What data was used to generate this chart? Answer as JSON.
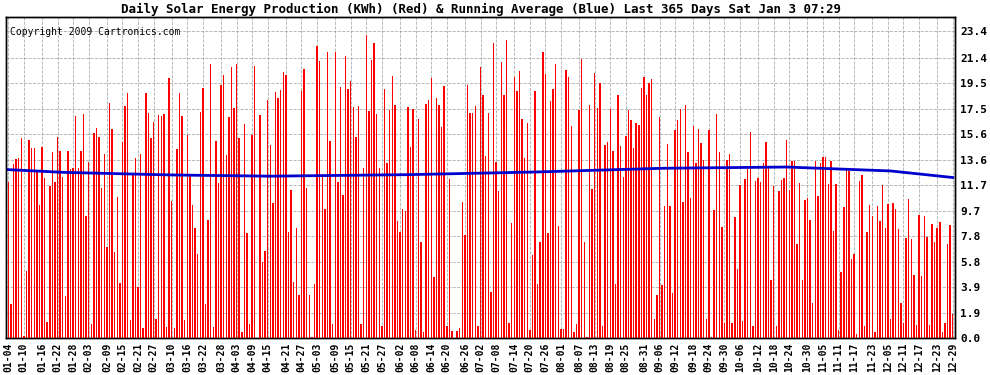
{
  "title": "Daily Solar Energy Production (KWh) (Red) & Running Average (Blue) Last 365 Days Sat Jan 3 07:29",
  "copyright": "Copyright 2009 Cartronics.com",
  "bar_color": "#ff0000",
  "avg_line_color": "#0000cc",
  "background_color": "#ffffff",
  "plot_bg_color": "#ffffff",
  "grid_color": "#999999",
  "yticks": [
    0.0,
    1.9,
    3.9,
    5.8,
    7.8,
    9.7,
    11.7,
    13.6,
    15.6,
    17.5,
    19.5,
    21.4,
    23.4
  ],
  "ylim": [
    0.0,
    24.5
  ],
  "x_labels": [
    "01-04",
    "01-10",
    "01-16",
    "01-22",
    "01-28",
    "02-03",
    "02-09",
    "02-15",
    "02-21",
    "02-27",
    "03-10",
    "03-16",
    "03-22",
    "03-28",
    "04-03",
    "04-09",
    "04-15",
    "04-21",
    "04-27",
    "05-03",
    "05-09",
    "05-15",
    "05-21",
    "05-27",
    "06-02",
    "06-08",
    "06-14",
    "06-20",
    "06-26",
    "07-02",
    "07-08",
    "07-14",
    "07-20",
    "07-26",
    "08-01",
    "08-07",
    "08-13",
    "08-19",
    "08-25",
    "08-31",
    "09-06",
    "09-12",
    "09-18",
    "09-24",
    "09-30",
    "10-06",
    "10-12",
    "10-18",
    "10-24",
    "10-30",
    "11-05",
    "11-11",
    "11-17",
    "11-23",
    "12-05",
    "12-11",
    "12-17",
    "12-23",
    "12-29"
  ],
  "running_avg_points": {
    "x": [
      0,
      20,
      60,
      100,
      150,
      200,
      250,
      300,
      340,
      364
    ],
    "y": [
      12.85,
      12.65,
      12.45,
      12.35,
      12.45,
      12.65,
      12.95,
      13.05,
      12.75,
      12.25
    ]
  },
  "bar_width": 0.55,
  "avg_linewidth": 2.0,
  "title_fontsize": 9,
  "tick_fontsize": 8,
  "copyright_fontsize": 7
}
